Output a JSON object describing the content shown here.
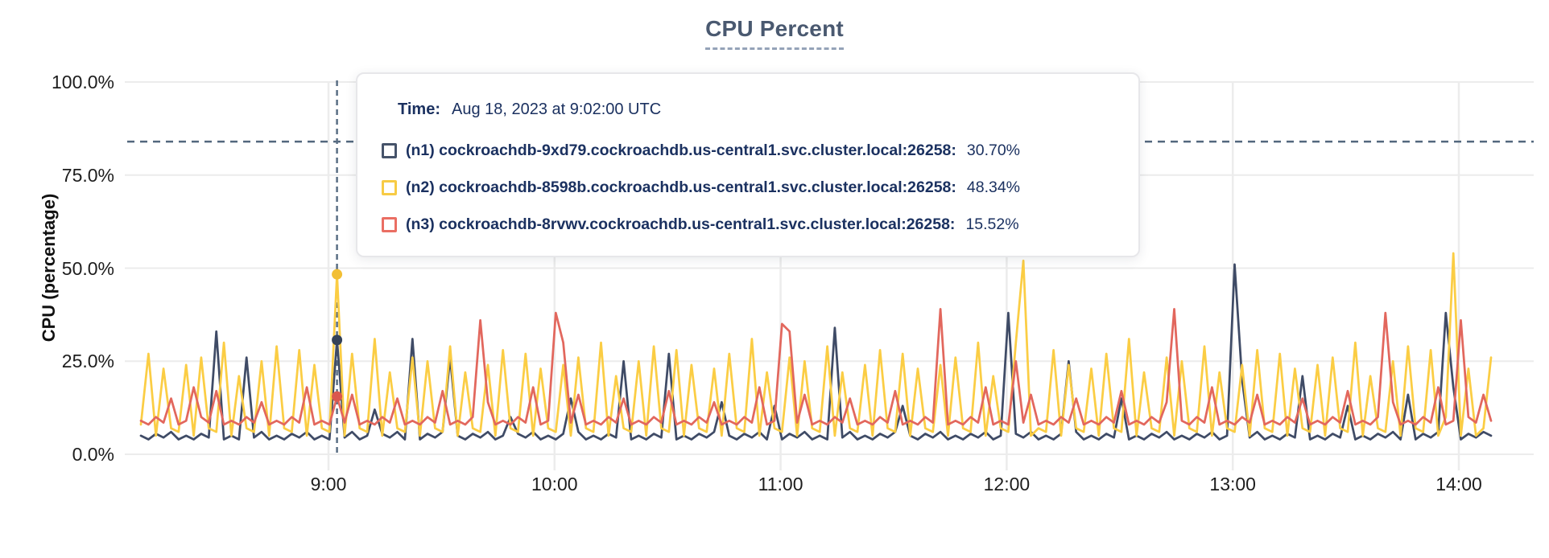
{
  "tooltip": {
    "time_label": "Time:",
    "time_value": "Aug 18, 2023 at 9:02:00 UTC"
  },
  "chart_data": {
    "type": "line",
    "title": "CPU Percent",
    "ylabel": "CPU (percentage)",
    "ylim": [
      0,
      100
    ],
    "grid": true,
    "y_ticks": [
      {
        "label": "100.0%",
        "value": 100
      },
      {
        "label": "75.0%",
        "value": 75
      },
      {
        "label": "50.0%",
        "value": 50
      },
      {
        "label": "25.0%",
        "value": 25
      },
      {
        "label": "0.0%",
        "value": 0
      }
    ],
    "x_ticks": [
      {
        "label": "9:00",
        "hour": 9
      },
      {
        "label": "10:00",
        "hour": 10
      },
      {
        "label": "11:00",
        "hour": 11
      },
      {
        "label": "12:00",
        "hour": 12
      },
      {
        "label": "13:00",
        "hour": 13
      },
      {
        "label": "14:00",
        "hour": 14
      }
    ],
    "x_start": "8:10",
    "x_end": "14:08",
    "x_step_minutes": 2,
    "dashed_reference_line_pct": 84,
    "hover": {
      "index": 26,
      "time": "9:02",
      "date_label": "Aug 18, 2023 at 9:02:00 UTC"
    },
    "colors": {
      "gridline": "#ececec",
      "crosshair_dash": "#5a6e84",
      "reference_dash": "#53687e",
      "title_text": "#4a5970",
      "tooltip_text": "#1b3160"
    },
    "series": [
      {
        "id": "n1",
        "label": "(n1) cockroachdb-9xd79.cockroachdb.us-central1.svc.cluster.local:26258:",
        "hover_value": "30.70%",
        "line_color": "#3f4b66",
        "dot_color": "#344259",
        "swatch_color": "#46536a",
        "values": [
          5,
          4,
          5.5,
          4.5,
          6,
          4,
          5,
          4,
          5.5,
          4.5,
          33,
          4,
          5,
          4,
          26,
          4.5,
          6,
          4,
          5,
          4,
          5.5,
          4.5,
          6,
          4,
          5,
          4,
          30.7,
          4.5,
          6,
          4,
          5,
          12,
          5.5,
          4.5,
          6,
          4,
          31,
          4,
          5.5,
          4.5,
          6,
          26,
          5,
          4,
          5.5,
          4.5,
          6,
          4,
          5,
          10,
          5.5,
          4.5,
          6,
          4,
          5,
          4,
          5.5,
          15,
          6,
          4,
          5,
          4,
          5.5,
          4.5,
          25,
          4,
          5,
          4,
          5.5,
          4.5,
          27,
          4,
          5,
          4,
          5.5,
          4.5,
          6,
          14,
          5,
          4,
          5.5,
          4.5,
          6,
          4,
          13,
          4,
          5.5,
          4.5,
          6,
          4,
          5,
          4,
          34,
          4.5,
          6,
          4,
          5,
          4,
          5.5,
          4.5,
          6,
          13,
          5,
          4,
          5.5,
          4.5,
          6,
          4,
          5,
          4,
          5.5,
          4.5,
          6,
          4,
          5,
          38,
          5.5,
          4.5,
          6,
          4,
          5,
          4,
          5.5,
          25,
          6,
          4,
          5,
          4,
          5.5,
          4.5,
          15,
          4,
          5,
          4,
          5.5,
          4.5,
          6,
          4,
          5,
          4,
          5.5,
          4.5,
          6,
          4,
          5,
          51,
          20,
          4.5,
          6,
          4,
          5,
          4,
          5.5,
          4.5,
          21,
          4,
          5,
          4,
          5.5,
          4.5,
          13,
          4,
          5,
          4,
          5.5,
          4.5,
          6,
          4,
          16,
          4,
          5.5,
          4.5,
          6,
          38,
          18,
          4,
          5.5,
          4.5,
          6,
          5
        ]
      },
      {
        "id": "n2",
        "label": "(n2) cockroachdb-8598b.cockroachdb.us-central1.svc.cluster.local:26258:",
        "hover_value": "48.34%",
        "line_color": "#fbcd44",
        "dot_color": "#f2bf35",
        "swatch_color": "#f7cb45",
        "values": [
          8,
          27,
          5,
          23,
          7,
          6,
          24,
          5,
          26,
          7,
          6,
          30,
          5,
          21,
          7,
          6,
          25,
          5,
          29,
          7,
          6,
          28,
          5,
          24,
          7,
          6,
          48.34,
          5,
          27,
          7,
          6,
          31,
          5,
          22,
          7,
          6,
          26,
          5,
          25,
          7,
          6,
          29,
          5,
          22,
          7,
          6,
          24,
          5,
          28,
          7,
          6,
          27,
          5,
          23,
          7,
          6,
          24,
          5,
          26,
          7,
          6,
          30,
          5,
          21,
          7,
          6,
          25,
          5,
          29,
          7,
          6,
          28,
          5,
          24,
          7,
          6,
          23,
          5,
          27,
          7,
          6,
          31,
          5,
          22,
          7,
          6,
          26,
          5,
          25,
          7,
          6,
          29,
          5,
          22,
          7,
          6,
          24,
          5,
          28,
          7,
          6,
          27,
          5,
          23,
          7,
          6,
          24,
          5,
          26,
          7,
          6,
          30,
          5,
          21,
          7,
          6,
          30,
          52,
          5,
          7,
          6,
          28,
          5,
          24,
          7,
          6,
          23,
          5,
          27,
          7,
          6,
          31,
          5,
          22,
          7,
          6,
          26,
          5,
          25,
          7,
          6,
          29,
          5,
          22,
          7,
          6,
          24,
          5,
          28,
          7,
          6,
          27,
          5,
          23,
          7,
          6,
          24,
          5,
          26,
          7,
          6,
          30,
          5,
          21,
          7,
          6,
          25,
          5,
          29,
          7,
          6,
          28,
          5,
          10,
          54,
          5,
          23,
          5,
          7,
          26
        ]
      },
      {
        "id": "n3",
        "label": "(n3) cockroachdb-8rvwv.cockroachdb.us-central1.svc.cluster.local:26258:",
        "hover_value": "15.52%",
        "line_color": "#e2675d",
        "dot_color": "#da574e",
        "swatch_color": "#ea6e63",
        "values": [
          9,
          8,
          10,
          8.5,
          15,
          8,
          9,
          18,
          10,
          8.5,
          17,
          8,
          9,
          8,
          10,
          8.5,
          14,
          8,
          9,
          8,
          10,
          8.5,
          18,
          8,
          9,
          8,
          15.52,
          8.5,
          16,
          8,
          9,
          8,
          10,
          8.5,
          15,
          8,
          9,
          8,
          10,
          8.5,
          17,
          8,
          9,
          8,
          10,
          36,
          14,
          8,
          9,
          8,
          10,
          8.5,
          18,
          8,
          9,
          38,
          30,
          8.5,
          16,
          8,
          9,
          8,
          10,
          8.5,
          15,
          8,
          9,
          8,
          10,
          8.5,
          17,
          8,
          9,
          8,
          10,
          8.5,
          14,
          8,
          9,
          8,
          10,
          8.5,
          18,
          8,
          9,
          35,
          33,
          8.5,
          16,
          8,
          9,
          8,
          10,
          8.5,
          15,
          8,
          9,
          8,
          10,
          8.5,
          17,
          8,
          9,
          8,
          10,
          8.5,
          39,
          8,
          9,
          8,
          10,
          8.5,
          18,
          8,
          9,
          8,
          25,
          8.5,
          16,
          8,
          9,
          8,
          10,
          8.5,
          15,
          8,
          9,
          8,
          10,
          8.5,
          17,
          8,
          9,
          8,
          10,
          8.5,
          14,
          39,
          9,
          8,
          10,
          8.5,
          18,
          8,
          9,
          8,
          10,
          8.5,
          16,
          8,
          9,
          8,
          10,
          8.5,
          15,
          8,
          9,
          8,
          10,
          8.5,
          17,
          8,
          9,
          8,
          10,
          38,
          14,
          8,
          9,
          8,
          10,
          8.5,
          18,
          8,
          9,
          36,
          10,
          8.5,
          16,
          9
        ]
      }
    ]
  }
}
